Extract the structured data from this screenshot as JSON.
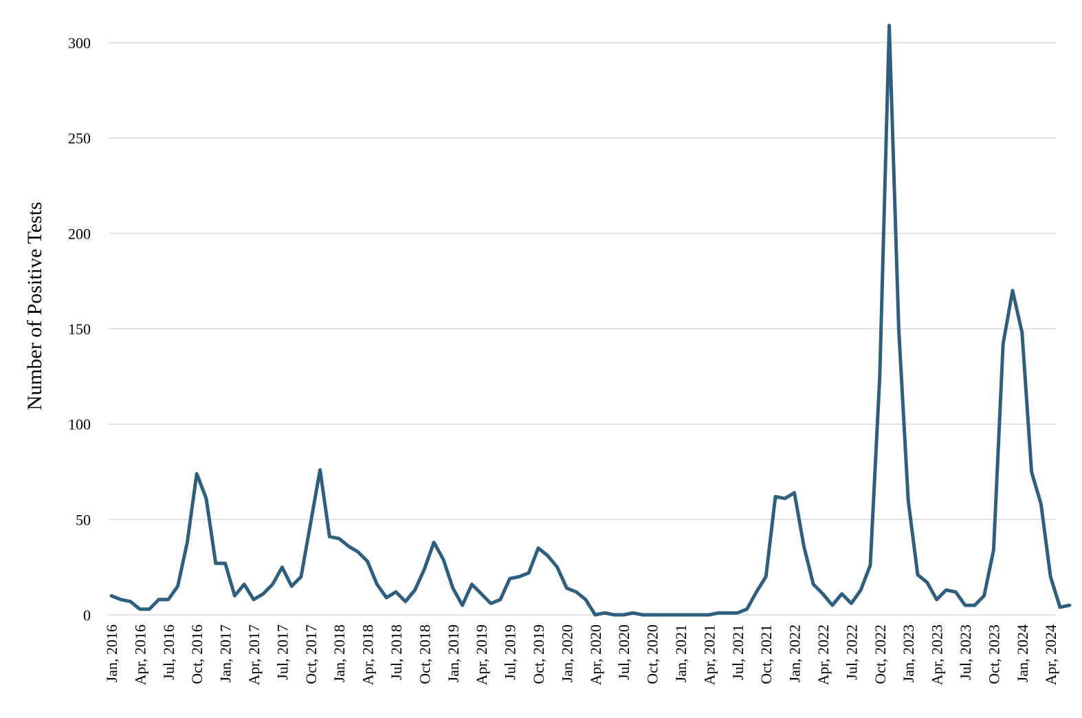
{
  "chart_data": {
    "type": "line",
    "title": "",
    "xlabel": "",
    "ylabel": "Number of Positive Tests",
    "ylim": [
      0,
      300
    ],
    "yticks": [
      0,
      50,
      100,
      150,
      200,
      250,
      300
    ],
    "grid": "horizontal",
    "legend": "none",
    "line_color": "#2e5f7f",
    "grid_color": "#d9d9d9",
    "x_tick_labels": [
      "Jan, 2016",
      "Apr, 2016",
      "Jul, 2016",
      "Oct, 2016",
      "Jan, 2017",
      "Apr, 2017",
      "Jul, 2017",
      "Oct, 2017",
      "Jan, 2018",
      "Apr, 2018",
      "Jul, 2018",
      "Oct, 2018",
      "Jan, 2019",
      "Apr, 2019",
      "Jul, 2019",
      "Oct, 2019",
      "Jan, 2020",
      "Apr, 2020",
      "Jul, 2020",
      "Oct, 2020",
      "Jan, 2021",
      "Apr, 2021",
      "Jul, 2021",
      "Oct, 2021",
      "Jan, 2022",
      "Apr, 2022",
      "Jul, 2022",
      "Oct, 2022",
      "Jan, 2023",
      "Apr, 2023",
      "Jul, 2023",
      "Oct, 2023",
      "Jan, 2024",
      "Apr, 2024"
    ],
    "x_start": "2016-01",
    "x_end": "2024-05",
    "series": [
      {
        "values": [
          10,
          8,
          7,
          3,
          3,
          8,
          8,
          15,
          38,
          74,
          61,
          27,
          27,
          10,
          16,
          8,
          11,
          16,
          25,
          15,
          20,
          48,
          76,
          41,
          40,
          36,
          33,
          28,
          16,
          9,
          12,
          7,
          13,
          24,
          38,
          29,
          14,
          5,
          16,
          11,
          6,
          8,
          19,
          20,
          22,
          35,
          31,
          25,
          14,
          12,
          8,
          0,
          1,
          0,
          0,
          1,
          0,
          0,
          0,
          0,
          0,
          0,
          0,
          0,
          1,
          1,
          1,
          3,
          12,
          20,
          62,
          61,
          64,
          36,
          16,
          11,
          5,
          11,
          6,
          13,
          26,
          125,
          309,
          150,
          60,
          21,
          17,
          8,
          13,
          12,
          5,
          5,
          10,
          34,
          142,
          170,
          148,
          75,
          58,
          20,
          4,
          5
        ]
      }
    ]
  }
}
